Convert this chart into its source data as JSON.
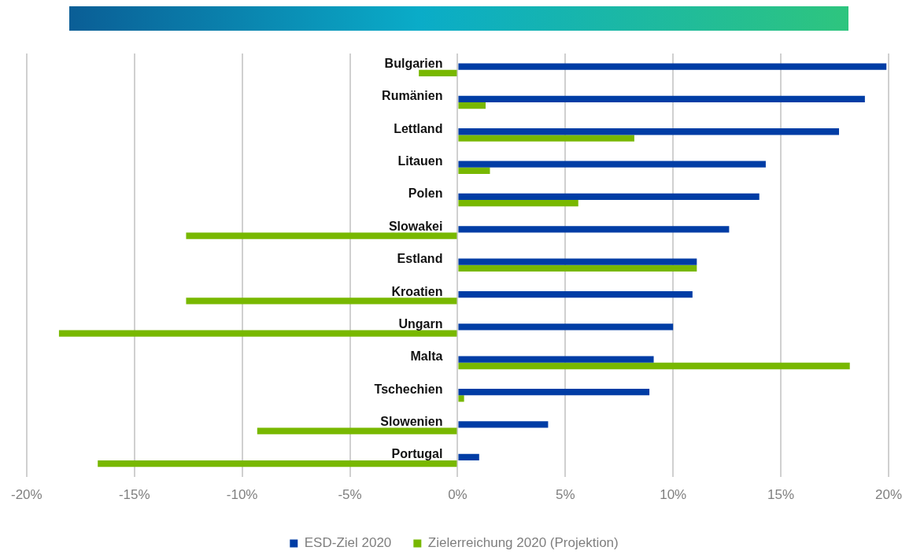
{
  "chart_data": {
    "type": "bar",
    "orientation": "horizontal",
    "categories": [
      "Bulgarien",
      "Rumänien",
      "Lettland",
      "Litauen",
      "Polen",
      "Slowakei",
      "Estland",
      "Kroatien",
      "Ungarn",
      "Malta",
      "Tschechien",
      "Slowenien",
      "Portugal"
    ],
    "series": [
      {
        "name": "ESD-Ziel 2020",
        "color": "#003da5",
        "values": [
          19.9,
          18.9,
          17.7,
          14.3,
          14.0,
          12.6,
          11.1,
          10.9,
          10.0,
          9.1,
          8.9,
          4.2,
          1.0
        ]
      },
      {
        "name": "Zielerreichung 2020 (Projektion)",
        "color": "#78b800",
        "values": [
          -1.8,
          1.3,
          8.2,
          1.5,
          5.6,
          -12.6,
          11.1,
          -12.6,
          -18.5,
          18.2,
          0.3,
          -9.3,
          -16.7
        ]
      }
    ],
    "xlim": [
      -20,
      20
    ],
    "xticks": [
      {
        "value": -20,
        "label": "-20%"
      },
      {
        "value": -15,
        "label": "-15%"
      },
      {
        "value": -10,
        "label": "-10%"
      },
      {
        "value": -5,
        "label": "-5%"
      },
      {
        "value": 0,
        "label": "0%"
      },
      {
        "value": 5,
        "label": "5%"
      },
      {
        "value": 10,
        "label": "10%"
      },
      {
        "value": 15,
        "label": "15%"
      },
      {
        "value": 20,
        "label": "20%"
      }
    ],
    "grid": "x",
    "legend": "bottom"
  }
}
